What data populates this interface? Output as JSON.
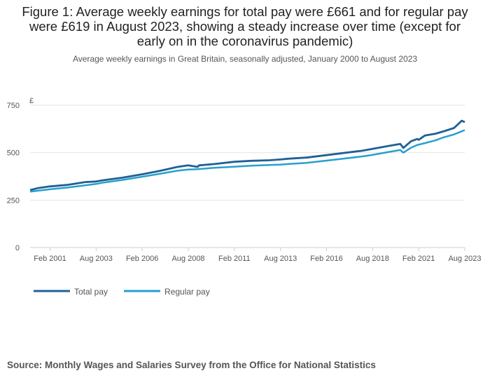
{
  "chart_data": {
    "type": "line",
    "title": "Figure 1: Average weekly earnings for total pay were £661 and for regular pay were £619 in August 2023, showing a steady increase over time (except for early on in the coronavirus pandemic)",
    "subtitle": "Average weekly earnings in Great Britain, seasonally adjusted, January 2000 to August 2023",
    "ylabel": "£",
    "ylim": [
      0,
      750
    ],
    "yticks": [
      0,
      250,
      500,
      750
    ],
    "xlim": [
      "2000-01",
      "2023-08"
    ],
    "xticks": [
      "Feb 2001",
      "Aug 2003",
      "Feb 2006",
      "Aug 2008",
      "Feb 2011",
      "Aug 2013",
      "Feb 2016",
      "Aug 2018",
      "Feb 2021",
      "Aug 2023"
    ],
    "grid": true,
    "legend_position": "bottom-left",
    "series": [
      {
        "name": "Total pay",
        "color": "#206095",
        "x": [
          "2000-01",
          "2000-06",
          "2001-02",
          "2002-01",
          "2003-01",
          "2003-08",
          "2004-01",
          "2005-01",
          "2006-02",
          "2007-01",
          "2008-01",
          "2008-08",
          "2009-02",
          "2009-03",
          "2010-01",
          "2011-02",
          "2012-01",
          "2013-01",
          "2013-08",
          "2014-01",
          "2015-01",
          "2016-02",
          "2017-01",
          "2018-01",
          "2018-08",
          "2019-06",
          "2020-02",
          "2020-04",
          "2020-09",
          "2021-01",
          "2021-02",
          "2021-06",
          "2022-01",
          "2022-06",
          "2023-01",
          "2023-06",
          "2023-08"
        ],
        "y": [
          303,
          313,
          322,
          330,
          345,
          348,
          355,
          368,
          386,
          403,
          425,
          433,
          425,
          433,
          440,
          452,
          457,
          460,
          464,
          468,
          474,
          487,
          498,
          510,
          520,
          535,
          546,
          525,
          560,
          572,
          568,
          590,
          600,
          612,
          630,
          668,
          661
        ]
      },
      {
        "name": "Regular pay",
        "color": "#27A0CC",
        "x": [
          "2000-01",
          "2001-02",
          "2002-01",
          "2003-01",
          "2003-08",
          "2004-01",
          "2005-01",
          "2006-02",
          "2007-01",
          "2008-01",
          "2008-08",
          "2009-02",
          "2010-01",
          "2011-02",
          "2012-01",
          "2013-01",
          "2013-08",
          "2014-01",
          "2015-01",
          "2016-02",
          "2017-01",
          "2018-01",
          "2018-08",
          "2019-06",
          "2020-02",
          "2020-04",
          "2020-09",
          "2021-01",
          "2021-06",
          "2022-01",
          "2022-06",
          "2023-01",
          "2023-08"
        ],
        "y": [
          295,
          307,
          316,
          328,
          335,
          343,
          356,
          373,
          388,
          405,
          411,
          413,
          420,
          426,
          431,
          435,
          437,
          440,
          446,
          458,
          468,
          480,
          488,
          503,
          514,
          500,
          526,
          540,
          550,
          565,
          580,
          596,
          619
        ]
      }
    ]
  },
  "source": "Source: Monthly Wages and Salaries Survey from the Office for National Statistics"
}
